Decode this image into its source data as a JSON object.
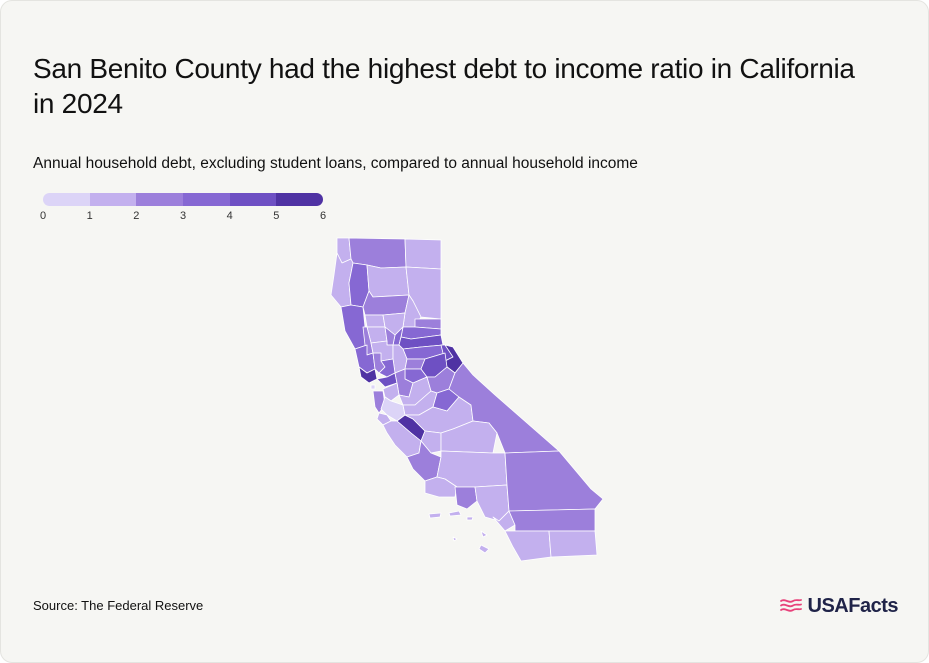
{
  "header": {
    "title": "San Benito County had the highest debt to income ratio in California in 2024",
    "subtitle": "Annual household debt, excluding student loans, compared to annual household income"
  },
  "legend": {
    "ticks": [
      "0",
      "1",
      "2",
      "3",
      "4",
      "5",
      "6"
    ],
    "colors": [
      "#dcd4f7",
      "#c3b0ee",
      "#9c7fdb",
      "#8668d3",
      "#6e50c3",
      "#4f32a3"
    ]
  },
  "map_data": {
    "type": "choropleth",
    "region": "California counties",
    "highlight": "San Benito County"
  },
  "footer": {
    "source": "Source: The Federal Reserve",
    "brand": "USAFacts",
    "brand_color": "#e8417a"
  }
}
